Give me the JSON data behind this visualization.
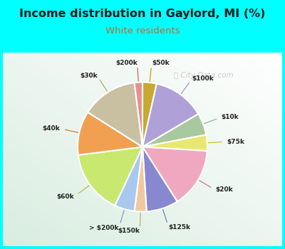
{
  "title": "Income distribution in Gaylord, MI (%)",
  "subtitle": "White residents",
  "title_color": "#1a1a1a",
  "subtitle_color": "#b87030",
  "background_color": "#00ffff",
  "watermark": "City-Data.com",
  "labels": [
    "$50k",
    "$100k",
    "$10k",
    "$75k",
    "$20k",
    "$125k",
    "$150k",
    "> $200k",
    "$60k",
    "$40k",
    "$30k",
    "$200k"
  ],
  "values": [
    3.5,
    13,
    5.5,
    4,
    15,
    8,
    3,
    5,
    16,
    11,
    14,
    2
  ],
  "colors": [
    "#c8a830",
    "#b0a0d8",
    "#a8c8a0",
    "#e8e870",
    "#f0a8c0",
    "#8888d0",
    "#f0c8a0",
    "#a8c8f0",
    "#c8e870",
    "#f0a050",
    "#c8c0a0",
    "#e89090"
  ],
  "label_line_colors": [
    "#c8a000",
    "#a098c8",
    "#90b890",
    "#c0c820",
    "#e07090",
    "#7080b8",
    "#d0a870",
    "#8898c8",
    "#a8c840",
    "#d08030",
    "#b0a870",
    "#d06060"
  ],
  "startangle": 90,
  "wedge_edge_color": "#ffffff",
  "wedge_edge_width": 1.5
}
